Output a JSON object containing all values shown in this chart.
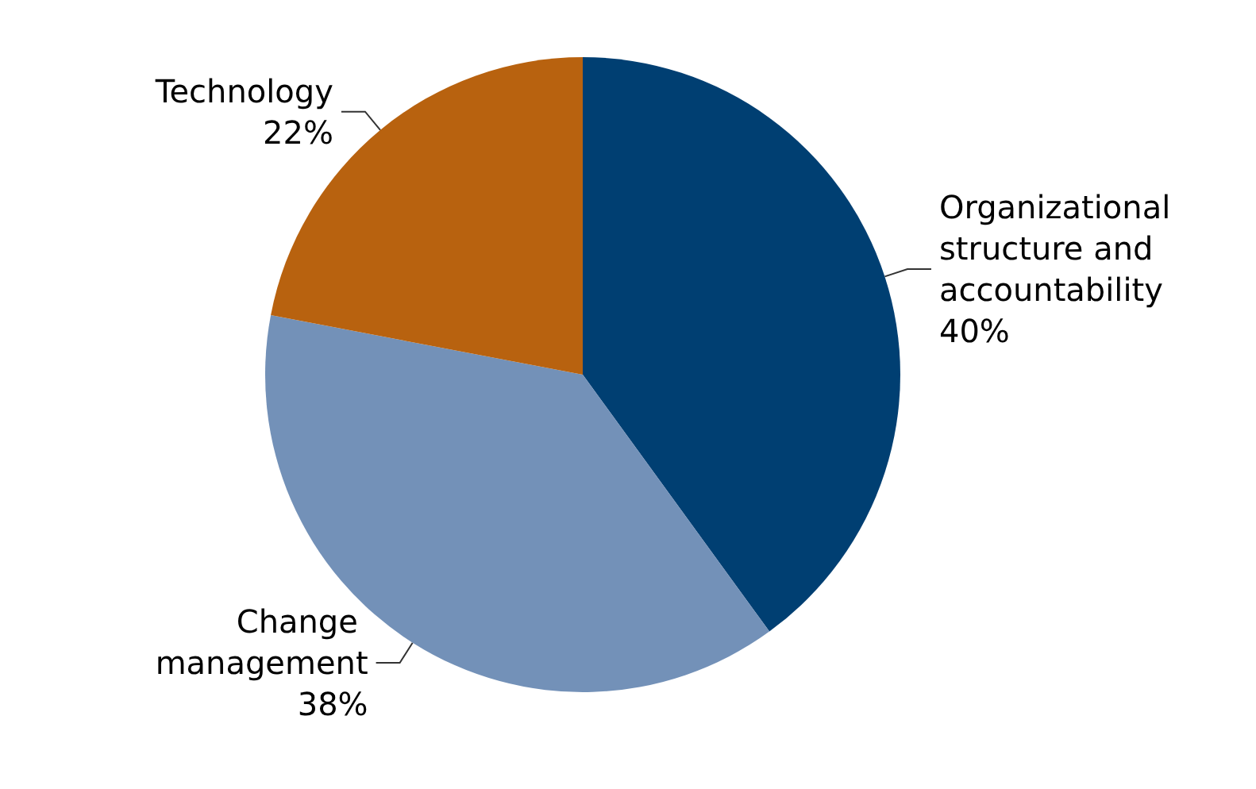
{
  "chart_data": {
    "type": "pie",
    "categories": [
      "Organizational structure and accountability",
      "Change management",
      "Technology"
    ],
    "values": [
      40,
      38,
      22
    ],
    "value_labels": [
      "40%",
      "38%",
      "22%"
    ],
    "colors": [
      "#003f72",
      "#7391b8",
      "#b8620f"
    ],
    "legend": false
  }
}
